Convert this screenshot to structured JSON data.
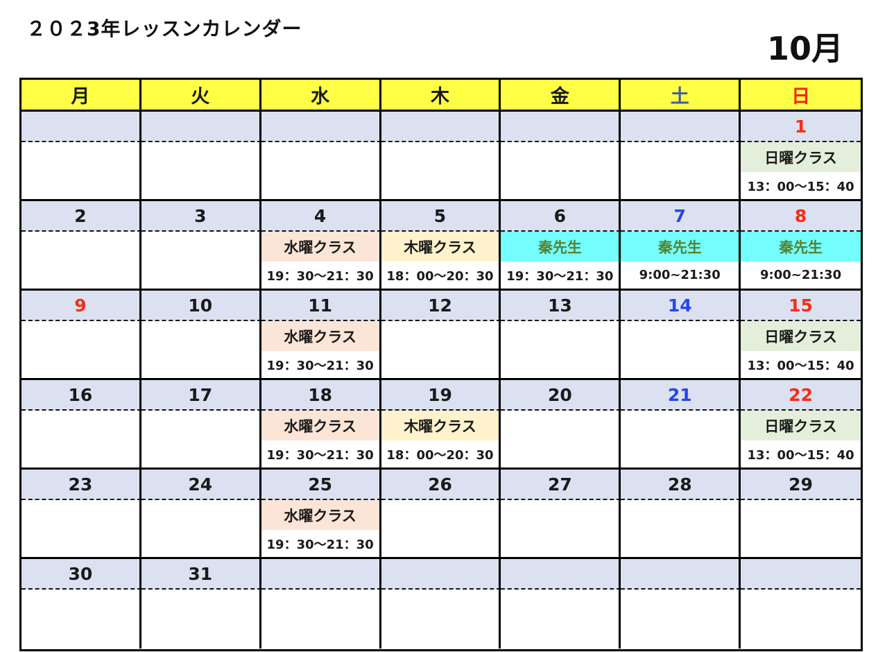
{
  "page": {
    "title": "２０２3年レッスンカレンダー",
    "month_label": "10月"
  },
  "colors": {
    "header_bg": "#ffff45",
    "date_row_bg": "#dce1f1",
    "black_text": "#1a1a1a",
    "red_date": "#f62d15",
    "blue_date": "#2447e8",
    "saturday_header_blue": "#3d5e9d",
    "sunday_header_red": "#f3230f",
    "sunday_class_bg": "#e3efda",
    "wednesday_class_bg": "#fbe5d6",
    "thursday_class_bg": "#fff2cc",
    "teacher_class_bg": "#74fdfd",
    "teacher_text_green": "#548235"
  },
  "weekday_headers": [
    {
      "label": "月",
      "color": "#1a1a1a"
    },
    {
      "label": "火",
      "color": "#1a1a1a"
    },
    {
      "label": "水",
      "color": "#1a1a1a"
    },
    {
      "label": "木",
      "color": "#1a1a1a"
    },
    {
      "label": "金",
      "color": "#1a1a1a"
    },
    {
      "label": "土",
      "color": "#3d5e9d"
    },
    {
      "label": "日",
      "color": "#f3230f"
    }
  ],
  "weeks": [
    {
      "days": [
        {
          "date": ""
        },
        {
          "date": ""
        },
        {
          "date": ""
        },
        {
          "date": ""
        },
        {
          "date": ""
        },
        {
          "date": ""
        },
        {
          "date": "1",
          "date_color": "#f62d15",
          "class_label": "日曜クラス",
          "class_bg": "#e3efda",
          "class_color": "#1a1a1a",
          "time": "13：00～15：40"
        }
      ]
    },
    {
      "days": [
        {
          "date": "2",
          "date_color": "#1a1a1a"
        },
        {
          "date": "3",
          "date_color": "#1a1a1a"
        },
        {
          "date": "4",
          "date_color": "#1a1a1a",
          "class_label": "水曜クラス",
          "class_bg": "#fbe5d6",
          "class_color": "#1a1a1a",
          "time": "19：30～21：30"
        },
        {
          "date": "5",
          "date_color": "#1a1a1a",
          "class_label": "木曜クラス",
          "class_bg": "#fff2cc",
          "class_color": "#1a1a1a",
          "time": "18：00～20：30"
        },
        {
          "date": "6",
          "date_color": "#1a1a1a",
          "class_label": "秦先生",
          "class_bg": "#74fdfd",
          "class_color": "#548235",
          "time": "19：30～21：30"
        },
        {
          "date": "7",
          "date_color": "#2447e8",
          "class_label": "秦先生",
          "class_bg": "#74fdfd",
          "class_color": "#548235",
          "time": "9:00~21:30"
        },
        {
          "date": "8",
          "date_color": "#f62d15",
          "class_label": "秦先生",
          "class_bg": "#74fdfd",
          "class_color": "#548235",
          "time": "9:00~21:30"
        }
      ]
    },
    {
      "days": [
        {
          "date": "9",
          "date_color": "#f62d15"
        },
        {
          "date": "10",
          "date_color": "#1a1a1a"
        },
        {
          "date": "11",
          "date_color": "#1a1a1a",
          "class_label": "水曜クラス",
          "class_bg": "#fbe5d6",
          "class_color": "#1a1a1a",
          "time": "19：30～21：30"
        },
        {
          "date": "12",
          "date_color": "#1a1a1a"
        },
        {
          "date": "13",
          "date_color": "#1a1a1a"
        },
        {
          "date": "14",
          "date_color": "#2447e8"
        },
        {
          "date": "15",
          "date_color": "#f62d15",
          "class_label": "日曜クラス",
          "class_bg": "#e3efda",
          "class_color": "#1a1a1a",
          "time": "13：00～15：40"
        }
      ]
    },
    {
      "days": [
        {
          "date": "16",
          "date_color": "#1a1a1a"
        },
        {
          "date": "17",
          "date_color": "#1a1a1a"
        },
        {
          "date": "18",
          "date_color": "#1a1a1a",
          "class_label": "水曜クラス",
          "class_bg": "#fbe5d6",
          "class_color": "#1a1a1a",
          "time": "19：30～21：30"
        },
        {
          "date": "19",
          "date_color": "#1a1a1a",
          "class_label": "木曜クラス",
          "class_bg": "#fff2cc",
          "class_color": "#1a1a1a",
          "time": "18：00～20：30"
        },
        {
          "date": "20",
          "date_color": "#1a1a1a"
        },
        {
          "date": "21",
          "date_color": "#2447e8"
        },
        {
          "date": "22",
          "date_color": "#f62d15",
          "class_label": "日曜クラス",
          "class_bg": "#e3efda",
          "class_color": "#1a1a1a",
          "time": "13：00～15：40"
        }
      ]
    },
    {
      "days": [
        {
          "date": "23",
          "date_color": "#1a1a1a"
        },
        {
          "date": "24",
          "date_color": "#1a1a1a"
        },
        {
          "date": "25",
          "date_color": "#1a1a1a",
          "class_label": "水曜クラス",
          "class_bg": "#fbe5d6",
          "class_color": "#1a1a1a",
          "time": "19：30～21：30"
        },
        {
          "date": "26",
          "date_color": "#1a1a1a"
        },
        {
          "date": "27",
          "date_color": "#1a1a1a"
        },
        {
          "date": "28",
          "date_color": "#1a1a1a"
        },
        {
          "date": "29",
          "date_color": "#1a1a1a"
        }
      ]
    },
    {
      "days": [
        {
          "date": "30",
          "date_color": "#1a1a1a"
        },
        {
          "date": "31",
          "date_color": "#1a1a1a"
        },
        {
          "date": ""
        },
        {
          "date": ""
        },
        {
          "date": ""
        },
        {
          "date": ""
        },
        {
          "date": ""
        }
      ]
    }
  ]
}
